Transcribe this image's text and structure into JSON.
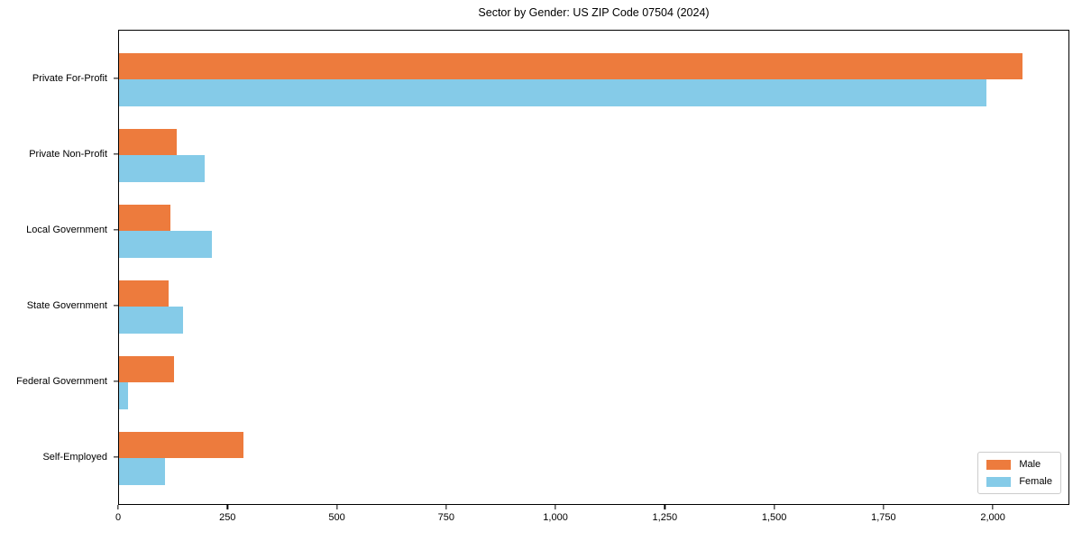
{
  "chart_data": {
    "type": "bar",
    "orientation": "horizontal",
    "title": "Sector by Gender: US ZIP Code 07504 (2024)",
    "xlabel": "",
    "ylabel": "",
    "categories": [
      "Private For-Profit",
      "Private Non-Profit",
      "Local Government",
      "State Government",
      "Federal Government",
      "Self-Employed"
    ],
    "series": [
      {
        "name": "Male",
        "color": "#ED7B3D",
        "values": [
          2070,
          132,
          118,
          113,
          126,
          285
        ]
      },
      {
        "name": "Female",
        "color": "#85CBE8",
        "values": [
          1988,
          196,
          212,
          146,
          21,
          105
        ]
      }
    ],
    "xlim": [
      0,
      2175
    ],
    "xticks": [
      0,
      250,
      500,
      750,
      1000,
      1250,
      1500,
      1750,
      2000
    ],
    "xtick_labels": [
      "0",
      "250",
      "500",
      "750",
      "1,000",
      "1,250",
      "1,500",
      "1,750",
      "2,000"
    ],
    "grid": false,
    "legend_position": "lower right",
    "background_color": "#ffffff",
    "spine_color": "#000000"
  }
}
